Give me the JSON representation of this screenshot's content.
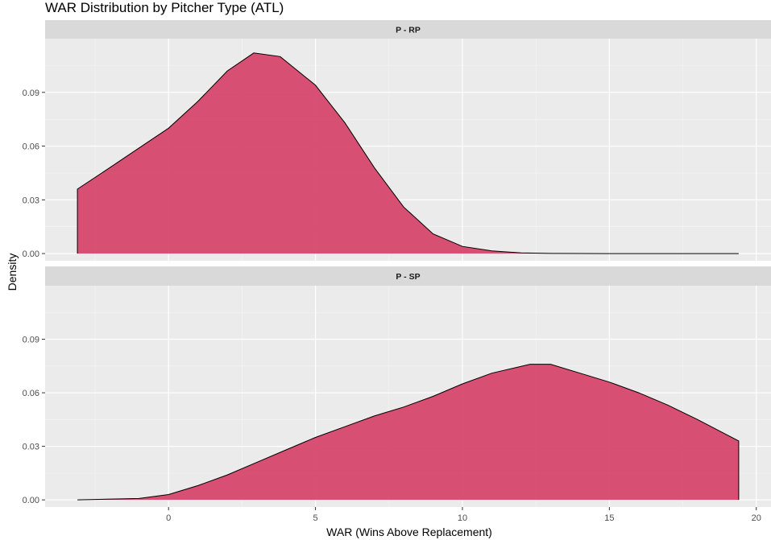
{
  "chart_data": {
    "type": "area",
    "title": "WAR Distribution by Pitcher Type (ATL)",
    "xlabel": "WAR (Wins Above Replacement)",
    "ylabel": "Density",
    "xlim": [
      -4.2,
      20.5
    ],
    "ylim": [
      -0.004,
      0.12
    ],
    "x_ticks": [
      0,
      5,
      10,
      15,
      20
    ],
    "x_tick_labels": [
      "0",
      "5",
      "10",
      "15",
      "20"
    ],
    "y_ticks": [
      0,
      0.03,
      0.06,
      0.09
    ],
    "y_tick_labels": [
      "0.00",
      "0.03",
      "0.06",
      "0.09"
    ],
    "fill_color": "#d6476b",
    "line_color": "#000000",
    "panel_background": "#ebebeb",
    "strip_background": "#d9d9d9",
    "grid": true,
    "legend": "none",
    "facets": [
      {
        "label": "P - RP",
        "x": [
          -3.1,
          -2.0,
          -1.0,
          0.0,
          1.0,
          2.0,
          2.9,
          3.8,
          5.0,
          6.0,
          7.0,
          8.0,
          9.0,
          10.0,
          11.0,
          12.0,
          13.0,
          15.0,
          17.0,
          19.4
        ],
        "y": [
          0.036,
          0.048,
          0.059,
          0.07,
          0.085,
          0.102,
          0.112,
          0.11,
          0.094,
          0.073,
          0.048,
          0.026,
          0.011,
          0.004,
          0.0015,
          0.0004,
          0.0001,
          0.0,
          0.0,
          0.0
        ]
      },
      {
        "label": "P - SP",
        "x": [
          -3.1,
          -1.0,
          0.0,
          1.0,
          2.0,
          3.0,
          4.0,
          5.0,
          6.0,
          7.0,
          8.0,
          9.0,
          10.0,
          11.0,
          12.3,
          13.0,
          14.0,
          15.0,
          16.0,
          17.0,
          18.0,
          19.4
        ],
        "y": [
          0.0,
          0.0008,
          0.003,
          0.008,
          0.014,
          0.021,
          0.028,
          0.035,
          0.041,
          0.047,
          0.052,
          0.058,
          0.065,
          0.071,
          0.076,
          0.076,
          0.071,
          0.066,
          0.06,
          0.053,
          0.045,
          0.033
        ]
      }
    ]
  }
}
